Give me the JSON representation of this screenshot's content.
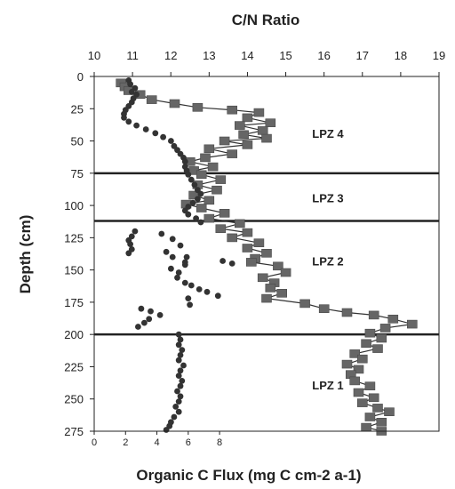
{
  "chart_data": {
    "type": "scatter",
    "title": "",
    "top_axis": {
      "label": "C/N Ratio",
      "range": [
        10,
        19
      ],
      "ticks": [
        "10",
        "11",
        "12",
        "13",
        "14",
        "15",
        "16",
        "17",
        "18",
        "19"
      ]
    },
    "bottom_axis": {
      "label": "Organic C Flux (mg C cm-2 a-1)",
      "range": [
        0,
        22
      ],
      "ticks": [
        "0",
        "2",
        "4",
        "6",
        "8"
      ]
    },
    "left_axis": {
      "label": "Depth (cm)",
      "range": [
        0,
        275
      ],
      "inverted": true,
      "ticks": [
        "0",
        "25",
        "50",
        "75",
        "100",
        "125",
        "150",
        "175",
        "200",
        "225",
        "250",
        "275"
      ]
    },
    "grid": false,
    "zone_boundaries_depth": [
      75,
      112,
      200
    ],
    "zones": [
      {
        "label": "LPZ 4",
        "depth": 44,
        "cn": 16.1
      },
      {
        "label": "LPZ 3",
        "depth": 94,
        "cn": 16.1
      },
      {
        "label": "LPZ 2",
        "depth": 143,
        "cn": 16.1
      },
      {
        "label": "LPZ 1",
        "depth": 239,
        "cn": 16.1
      }
    ],
    "series": [
      {
        "marker": "square",
        "axis": "top",
        "color": "#666666",
        "line": true,
        "points": [
          [
            10.7,
            5
          ],
          [
            10.8,
            8
          ],
          [
            10.9,
            11
          ],
          [
            11.2,
            14
          ],
          [
            11.5,
            18
          ],
          [
            12.1,
            21
          ],
          [
            12.7,
            24
          ],
          [
            13.6,
            26
          ],
          [
            14.3,
            28
          ],
          [
            14.0,
            32
          ],
          [
            14.6,
            36
          ],
          [
            13.8,
            38
          ],
          [
            14.4,
            42
          ],
          [
            13.9,
            45
          ],
          [
            14.5,
            48
          ],
          [
            13.4,
            50
          ],
          [
            14.0,
            53
          ],
          [
            13.0,
            56
          ],
          [
            13.6,
            60
          ],
          [
            12.9,
            63
          ],
          [
            12.5,
            66
          ],
          [
            13.1,
            70
          ],
          [
            12.6,
            73
          ],
          [
            12.8,
            76
          ],
          [
            13.3,
            80
          ],
          [
            12.7,
            84
          ],
          [
            13.2,
            88
          ],
          [
            12.6,
            92
          ],
          [
            13.0,
            96
          ],
          [
            12.4,
            99
          ],
          [
            12.8,
            102
          ],
          [
            13.4,
            106
          ],
          [
            13.0,
            110
          ],
          [
            13.8,
            114
          ],
          [
            13.3,
            118
          ],
          [
            14.0,
            121
          ],
          [
            13.6,
            125
          ],
          [
            14.3,
            129
          ],
          [
            14.0,
            133
          ],
          [
            14.5,
            137
          ],
          [
            14.2,
            141
          ],
          [
            14.1,
            144
          ],
          [
            14.8,
            147
          ],
          [
            15.0,
            152
          ],
          [
            14.4,
            156
          ],
          [
            14.7,
            160
          ],
          [
            14.6,
            164
          ],
          [
            14.9,
            168
          ],
          [
            14.5,
            172
          ],
          [
            15.5,
            176
          ],
          [
            16.0,
            180
          ],
          [
            16.6,
            183
          ],
          [
            17.3,
            185
          ],
          [
            17.8,
            188
          ],
          [
            18.3,
            192
          ],
          [
            17.6,
            195
          ],
          [
            17.2,
            199
          ],
          [
            17.5,
            203
          ],
          [
            17.1,
            207
          ],
          [
            17.4,
            211
          ],
          [
            16.8,
            215
          ],
          [
            17.0,
            219
          ],
          [
            16.6,
            223
          ],
          [
            16.9,
            227
          ],
          [
            16.7,
            231
          ],
          [
            16.8,
            236
          ],
          [
            17.2,
            240
          ],
          [
            16.9,
            245
          ],
          [
            17.3,
            249
          ],
          [
            17.0,
            253
          ],
          [
            17.4,
            257
          ],
          [
            17.7,
            260
          ],
          [
            17.2,
            264
          ],
          [
            17.5,
            268
          ],
          [
            17.1,
            272
          ],
          [
            17.5,
            275
          ]
        ]
      },
      {
        "marker": "circle",
        "axis": "bottom",
        "color": "#333333",
        "line": false,
        "points": [
          [
            2.2,
            3
          ],
          [
            2.3,
            6
          ],
          [
            2.6,
            9
          ],
          [
            2.4,
            12
          ],
          [
            2.7,
            14
          ],
          [
            2.5,
            17
          ],
          [
            2.4,
            20
          ],
          [
            2.2,
            23
          ],
          [
            2.0,
            26
          ],
          [
            1.9,
            29
          ],
          [
            1.9,
            32
          ],
          [
            2.2,
            35
          ],
          [
            2.7,
            38
          ],
          [
            3.3,
            41
          ],
          [
            3.9,
            44
          ],
          [
            4.4,
            47
          ],
          [
            4.9,
            50
          ],
          [
            5.1,
            54
          ],
          [
            5.3,
            57
          ],
          [
            5.5,
            60
          ],
          [
            5.7,
            63
          ],
          [
            5.8,
            66
          ],
          [
            5.8,
            70
          ],
          [
            5.9,
            73
          ],
          [
            6.0,
            76
          ],
          [
            6.2,
            80
          ],
          [
            6.4,
            84
          ],
          [
            6.6,
            88
          ],
          [
            6.8,
            91
          ],
          [
            6.6,
            95
          ],
          [
            6.3,
            98
          ],
          [
            6.0,
            101
          ],
          [
            5.8,
            104
          ],
          [
            6.0,
            107
          ],
          [
            6.5,
            110
          ],
          [
            6.8,
            113
          ],
          [
            2.6,
            120
          ],
          [
            2.4,
            124
          ],
          [
            2.2,
            127
          ],
          [
            2.3,
            130
          ],
          [
            2.4,
            134
          ],
          [
            2.2,
            137
          ],
          [
            4.3,
            122
          ],
          [
            5.0,
            126
          ],
          [
            5.5,
            131
          ],
          [
            4.6,
            136
          ],
          [
            5.0,
            140
          ],
          [
            5.8,
            144
          ],
          [
            4.9,
            149
          ],
          [
            5.4,
            152
          ],
          [
            5.3,
            156
          ],
          [
            5.8,
            160
          ],
          [
            6.2,
            162
          ],
          [
            6.7,
            165
          ],
          [
            7.2,
            167
          ],
          [
            7.9,
            170
          ],
          [
            6.0,
            172
          ],
          [
            6.1,
            177
          ],
          [
            5.8,
            146
          ],
          [
            8.2,
            143
          ],
          [
            8.8,
            145
          ],
          [
            5.9,
            140
          ],
          [
            3.0,
            180
          ],
          [
            3.6,
            182
          ],
          [
            4.2,
            185
          ],
          [
            3.5,
            188
          ],
          [
            3.2,
            191
          ],
          [
            2.8,
            194
          ],
          [
            5.4,
            200
          ],
          [
            5.5,
            204
          ],
          [
            5.4,
            208
          ],
          [
            5.6,
            212
          ],
          [
            5.5,
            216
          ],
          [
            5.4,
            220
          ],
          [
            5.7,
            224
          ],
          [
            5.5,
            228
          ],
          [
            5.4,
            232
          ],
          [
            5.6,
            236
          ],
          [
            5.5,
            240
          ],
          [
            5.3,
            244
          ],
          [
            5.5,
            248
          ],
          [
            5.4,
            252
          ],
          [
            5.2,
            256
          ],
          [
            5.4,
            260
          ],
          [
            5.1,
            264
          ],
          [
            4.9,
            268
          ],
          [
            4.8,
            271
          ],
          [
            4.6,
            274
          ]
        ]
      }
    ]
  }
}
